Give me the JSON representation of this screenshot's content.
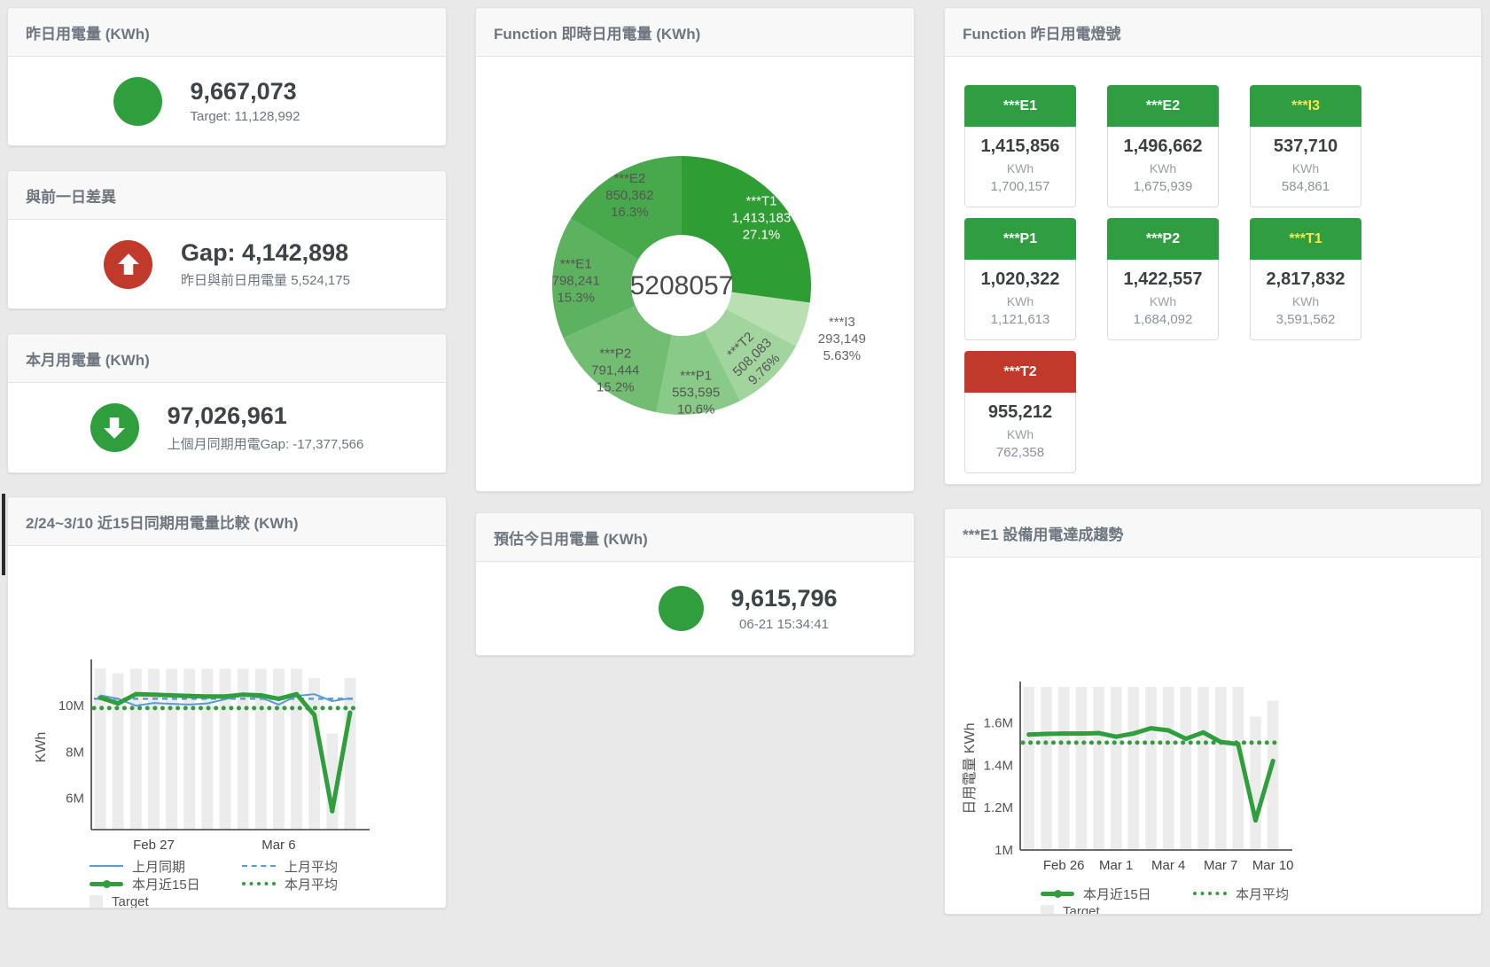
{
  "colors": {
    "green": "#2f9e3c",
    "red": "#c0392b",
    "blue": "#5b9bd5",
    "bar": "#ececec",
    "tile_green": "#2e9e40",
    "tile_red": "#c0392b",
    "yellow_label": "#ffe24a",
    "white_label": "#ffffff"
  },
  "cards": {
    "yesterday": {
      "title": "昨日用電量 (KWh)",
      "value": "9,667,073",
      "subtitle": "Target: 11,128,992"
    },
    "gap": {
      "title": "與前一日差異",
      "value": "Gap: 4,142,898",
      "subtitle": "昨日與前日用電量 5,524,175"
    },
    "month": {
      "title": "本月用電量 (KWh)",
      "value": "97,026,961",
      "subtitle": "上個月同期用電Gap: -17,377,566"
    },
    "estimate": {
      "title": "預估今日用電量 (KWh)",
      "value": "9,615,796",
      "subtitle": "06-21 15:34:41"
    }
  },
  "donut_card": {
    "title": "Function 即時日用電量 (KWh)"
  },
  "lights": {
    "title": "Function 昨日用電燈號",
    "unit": "KWh",
    "tiles": [
      {
        "id": "e1",
        "label": "***E1",
        "value": "1,415,856",
        "target": "1,700,157",
        "header_color": "#2e9e40",
        "label_color": "#ffffff"
      },
      {
        "id": "e2",
        "label": "***E2",
        "value": "1,496,662",
        "target": "1,675,939",
        "header_color": "#2e9e40",
        "label_color": "#ffffff"
      },
      {
        "id": "i3",
        "label": "***I3",
        "value": "537,710",
        "target": "584,861",
        "header_color": "#2e9e40",
        "label_color": "#ffe24a"
      },
      {
        "id": "p1",
        "label": "***P1",
        "value": "1,020,322",
        "target": "1,121,613",
        "header_color": "#2e9e40",
        "label_color": "#ffffff"
      },
      {
        "id": "p2",
        "label": "***P2",
        "value": "1,422,557",
        "target": "1,684,092",
        "header_color": "#2e9e40",
        "label_color": "#ffffff"
      },
      {
        "id": "t1",
        "label": "***T1",
        "value": "2,817,832",
        "target": "3,591,562",
        "header_color": "#2e9e40",
        "label_color": "#ffe24a"
      },
      {
        "id": "t2",
        "label": "***T2",
        "value": "955,212",
        "target": "762,358",
        "header_color": "#c0392b",
        "label_color": "#ffffff"
      }
    ]
  },
  "compare_card": {
    "title": "2/24~3/10 近15日同期用電量比較 (KWh)"
  },
  "trend_card": {
    "title": "***E1 設備用電達成趨勢"
  },
  "chart_data": [
    {
      "type": "pie",
      "title": "Function 即時日用電量 (KWh)",
      "center_total": "5208057",
      "slices": [
        {
          "name": "***T1",
          "value": 1413183,
          "pct": "27.1%",
          "color": "#2e9d33",
          "label_color": "#ffffff"
        },
        {
          "name": "***I3",
          "value": 293149,
          "pct": "5.63%",
          "color": "#b9dfb3",
          "label_color": "#666666",
          "outside": true
        },
        {
          "name": "***T2",
          "value": 508083,
          "pct": "9.76%",
          "color": "#a2d49e",
          "label_color": "#555555",
          "rotate": true
        },
        {
          "name": "***P1",
          "value": 553595,
          "pct": "10.6%",
          "color": "#8aca88",
          "label_color": "#555555"
        },
        {
          "name": "***P2",
          "value": 791444,
          "pct": "15.2%",
          "color": "#72bd72",
          "label_color": "#555555"
        },
        {
          "name": "***E1",
          "value": 798241,
          "pct": "15.3%",
          "color": "#5cb25e",
          "label_color": "#555555"
        },
        {
          "name": "***E2",
          "value": 850362,
          "pct": "16.3%",
          "color": "#48a94c",
          "label_color": "#555555"
        }
      ]
    },
    {
      "type": "line",
      "title": "2/24~3/10 近15日同期用電量比較 (KWh)",
      "ylabel": "KWh",
      "unit": "M KWh",
      "ylim": [
        4.65,
        11.77
      ],
      "yticks": [
        {
          "v": 6,
          "label": "6M"
        },
        {
          "v": 8,
          "label": "8M"
        },
        {
          "v": 10,
          "label": "10M"
        }
      ],
      "xticks": [
        {
          "i": 3,
          "label": "Feb 27"
        },
        {
          "i": 10,
          "label": "Mar 6"
        }
      ],
      "target_bars": [
        11.6,
        11.4,
        11.6,
        11.6,
        11.6,
        11.6,
        11.6,
        11.6,
        11.6,
        11.6,
        11.6,
        11.6,
        11.2,
        8.8,
        11.2
      ],
      "series": [
        {
          "name": "上月同期",
          "style": "blue-solid",
          "values": [
            10.45,
            10.3,
            10.0,
            10.12,
            10.08,
            10.05,
            10.1,
            10.28,
            10.45,
            10.35,
            10.05,
            10.42,
            10.5,
            10.2,
            10.32
          ]
        },
        {
          "name": "上月平均",
          "style": "blue-dashed",
          "const": 10.3
        },
        {
          "name": "本月近15日",
          "style": "green-thick",
          "values": [
            10.35,
            10.1,
            10.5,
            10.48,
            10.45,
            10.42,
            10.4,
            10.4,
            10.48,
            10.45,
            10.3,
            10.5,
            9.6,
            5.45,
            9.7
          ]
        },
        {
          "name": "本月平均",
          "style": "green-dotted",
          "const": 9.9
        }
      ],
      "legend": [
        {
          "label": "上月同期",
          "swatch": "blue-solid"
        },
        {
          "label": "上月平均",
          "swatch": "blue-dashed"
        },
        {
          "label": "本月近15日",
          "swatch": "green-thick"
        },
        {
          "label": "本月平均",
          "swatch": "green-dotted"
        },
        {
          "label": "Target",
          "swatch": "target"
        }
      ]
    },
    {
      "type": "line",
      "title": "***E1 設備用電達成趨勢",
      "ylabel": "日用電量 KWh",
      "unit": "M KWh",
      "ylim": [
        1.0,
        1.77
      ],
      "yticks": [
        {
          "v": 1,
          "label": "1M"
        },
        {
          "v": 1.2,
          "label": "1.2M"
        },
        {
          "v": 1.4,
          "label": "1.4M"
        },
        {
          "v": 1.6,
          "label": "1.6M"
        }
      ],
      "xticks": [
        {
          "i": 2,
          "label": "Feb 26"
        },
        {
          "i": 5,
          "label": "Mar 1"
        },
        {
          "i": 8,
          "label": "Mar 4"
        },
        {
          "i": 11,
          "label": "Mar 7"
        },
        {
          "i": 14,
          "label": "Mar 10"
        }
      ],
      "target_bars": [
        1.77,
        1.77,
        1.77,
        1.77,
        1.77,
        1.77,
        1.77,
        1.77,
        1.77,
        1.77,
        1.77,
        1.77,
        1.77,
        1.63,
        1.705
      ],
      "series": [
        {
          "name": "本月近15日",
          "style": "green-thick",
          "values": [
            1.545,
            1.548,
            1.55,
            1.55,
            1.552,
            1.535,
            1.55,
            1.575,
            1.565,
            1.525,
            1.555,
            1.51,
            1.5,
            1.14,
            1.42
          ]
        },
        {
          "name": "本月平均",
          "style": "green-dotted",
          "const": 1.507
        }
      ],
      "legend": [
        {
          "label": "本月近15日",
          "swatch": "green-thick"
        },
        {
          "label": "本月平均",
          "swatch": "green-dotted"
        },
        {
          "label": "Target",
          "swatch": "target"
        }
      ]
    }
  ]
}
